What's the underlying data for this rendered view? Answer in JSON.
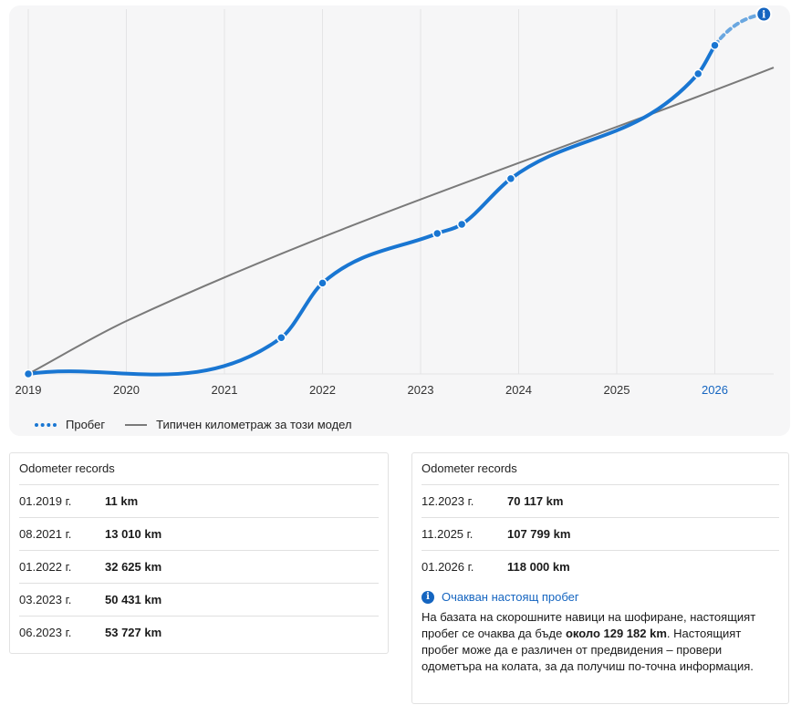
{
  "chart_data": {
    "type": "line",
    "x_ticks": [
      "2019",
      "2020",
      "2021",
      "2022",
      "2023",
      "2024",
      "2025",
      "2026"
    ],
    "highlight_tick": "2026",
    "series": [
      {
        "name": "Пробег",
        "color": "#1976d2",
        "style": "dotted",
        "points": [
          {
            "x": 2019.0,
            "y": 11
          },
          {
            "x": 2021.58,
            "y": 13010
          },
          {
            "x": 2022.0,
            "y": 32625
          },
          {
            "x": 2023.17,
            "y": 50431
          },
          {
            "x": 2023.42,
            "y": 53727
          },
          {
            "x": 2023.92,
            "y": 70117
          },
          {
            "x": 2025.83,
            "y": 107799
          },
          {
            "x": 2026.0,
            "y": 118000
          }
        ],
        "forecast": {
          "x": 2026.5,
          "y": 129182
        }
      },
      {
        "name": "Типичен километраж за този модел",
        "color": "#7a7a7a",
        "style": "solid",
        "points": [
          {
            "x": 2019.0,
            "y": 0
          },
          {
            "x": 2020.0,
            "y": 19000
          },
          {
            "x": 2026.6,
            "y": 110000
          }
        ]
      }
    ],
    "xlim": [
      2019.0,
      2026.6
    ],
    "ylim": [
      0,
      131000
    ],
    "grid": "vertical",
    "legend_position": "bottom-left"
  },
  "legend": {
    "mileage": "Пробег",
    "typical": "Типичен километраж за този модел"
  },
  "left_card": {
    "title": "Odometer records",
    "records": [
      {
        "date": "01.2019 г.",
        "value": "11 km"
      },
      {
        "date": "08.2021 г.",
        "value": "13 010 km"
      },
      {
        "date": "01.2022 г.",
        "value": "32 625 km"
      },
      {
        "date": "03.2023 г.",
        "value": "50 431 km"
      },
      {
        "date": "06.2023 г.",
        "value": "53 727 km"
      }
    ]
  },
  "right_card": {
    "title": "Odometer records",
    "records": [
      {
        "date": "12.2023 г.",
        "value": "70 117 km"
      },
      {
        "date": "11.2025 г.",
        "value": "107 799 km"
      },
      {
        "date": "01.2026 г.",
        "value": "118 000 km"
      }
    ],
    "expected": {
      "title": "Очакван настоящ пробег",
      "text_before": "На базата на скорошните навици на шофиране, настоящият пробег се очаква да бъде ",
      "bold": "около 129 182 km",
      "text_after": ". Настоящият пробег може да е различен от предвидения – провери одометъра на колата, за да получиш по-точна информация."
    }
  },
  "info_icon": "info-icon",
  "colors": {
    "accent": "#1976d2",
    "typical_line": "#7a7a7a",
    "forecast": "#6aa7e0",
    "highlight_tick": "#1565c0"
  }
}
